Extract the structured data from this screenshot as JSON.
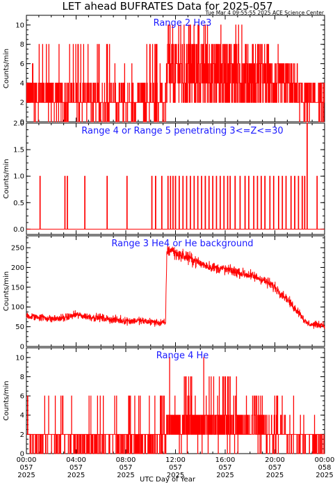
{
  "header": {
    "title": "LET ahead BUFRATES Data for 2025-057",
    "stamp": "Tue Mar  4 09:55:55 2025 ACE Science Center"
  },
  "xaxis": {
    "label": "UTC Day of Year",
    "ticks": [
      {
        "hours": 0,
        "time": "00:00",
        "doy": "057",
        "year": "2025"
      },
      {
        "hours": 4,
        "time": "04:00",
        "doy": "057",
        "year": "2025"
      },
      {
        "hours": 8,
        "time": "08:00",
        "doy": "057",
        "year": "2025"
      },
      {
        "hours": 12,
        "time": "12:00",
        "doy": "057",
        "year": "2025"
      },
      {
        "hours": 16,
        "time": "16:00",
        "doy": "057",
        "year": "2025"
      },
      {
        "hours": 20,
        "time": "20:00",
        "doy": "057",
        "year": "2025"
      },
      {
        "hours": 24,
        "time": "00:00",
        "doy": "058",
        "year": "2025"
      }
    ]
  },
  "colors": {
    "series": "#ff0000",
    "panel_title": "#1a1aff"
  },
  "chart_data": [
    {
      "type": "line",
      "title": "Range 2 He3",
      "ylabel": "Counts/min",
      "ylim": [
        0,
        11
      ],
      "yticks": [
        0,
        2,
        4,
        6,
        8,
        10
      ],
      "xlim": [
        0,
        24
      ],
      "series": [
        {
          "x_hours": [
            0,
            2,
            4,
            6,
            8,
            10,
            11.2,
            11.3,
            12,
            13,
            14,
            15,
            16,
            17,
            18,
            19,
            20,
            21,
            22,
            23,
            24
          ],
          "typical": [
            2.5,
            2.5,
            2,
            2,
            2,
            2,
            2,
            5,
            5,
            5,
            5,
            5,
            5,
            5,
            4.5,
            4.5,
            4,
            3.5,
            3,
            2.5,
            2
          ],
          "max": [
            6,
            8,
            8,
            8,
            6,
            8,
            6,
            10,
            10,
            10,
            11,
            10,
            10,
            10,
            8,
            8,
            8,
            6,
            6,
            3,
            3
          ]
        }
      ]
    },
    {
      "type": "line",
      "title": "Range 4 or Range 5 penetrating 3<=Z<=30",
      "ylabel": "Counts/min",
      "ylim": [
        -0.1,
        2.0
      ],
      "yticks": [
        0.0,
        0.5,
        1.0,
        1.5,
        2.0
      ],
      "xlim": [
        0,
        24
      ],
      "series": [
        {
          "baseline": 0,
          "spike_hours": [
            1.1,
            3.1,
            3.3,
            4.7,
            6.5,
            8.1,
            10.1,
            10.4,
            10.9,
            11.4,
            11.6,
            11.8,
            12.0,
            12.3,
            12.6,
            12.9,
            13.2,
            13.5,
            13.8,
            14.1,
            14.4,
            14.7,
            15.0,
            15.3,
            15.6,
            15.9,
            16.2,
            16.4,
            16.8,
            17.2,
            17.6,
            17.9,
            18.3,
            18.6,
            18.9,
            19.2,
            19.6,
            19.9,
            20.3,
            20.6,
            20.9,
            21.3,
            21.6,
            21.9,
            22.2,
            22.4,
            22.6,
            23.4
          ],
          "spike_values": [
            1,
            1,
            1,
            1,
            1,
            1,
            1,
            1,
            1,
            1,
            1,
            1,
            1,
            1,
            1,
            1,
            1,
            1,
            1,
            1,
            1,
            1,
            1,
            1,
            1,
            1,
            1,
            1,
            1,
            1,
            1,
            1,
            1,
            1,
            1,
            1,
            1,
            1,
            1,
            1,
            1,
            1,
            1,
            1,
            1,
            1,
            2,
            1
          ]
        }
      ]
    },
    {
      "type": "line",
      "title": "Range 3 He4 or He background",
      "ylabel": "Counts/min",
      "ylim": [
        0,
        280
      ],
      "yticks": [
        0,
        50,
        100,
        150,
        200,
        250
      ],
      "xlim": [
        0,
        24
      ],
      "series": [
        {
          "x_hours": [
            0,
            1,
            2,
            3,
            4,
            5,
            6,
            7,
            8,
            9,
            10,
            11,
            11.2,
            11.3,
            11.7,
            12,
            13,
            14,
            15,
            16,
            17,
            18,
            19,
            20,
            21,
            21.5,
            22,
            22.5,
            23,
            24
          ],
          "mean": [
            75,
            75,
            70,
            72,
            80,
            75,
            72,
            68,
            65,
            65,
            62,
            60,
            58,
            240,
            245,
            235,
            225,
            210,
            200,
            195,
            188,
            180,
            170,
            150,
            120,
            100,
            85,
            60,
            55,
            55
          ],
          "noise": [
            9,
            9,
            9,
            9,
            9,
            9,
            9,
            9,
            9,
            9,
            9,
            9,
            9,
            14,
            14,
            14,
            14,
            12,
            12,
            12,
            12,
            12,
            12,
            12,
            10,
            10,
            10,
            8,
            8,
            8
          ]
        }
      ]
    },
    {
      "type": "line",
      "title": "Range 4 He",
      "ylabel": "Counts/min",
      "ylim": [
        0,
        11
      ],
      "yticks": [
        0,
        2,
        4,
        6,
        8,
        10
      ],
      "xlim": [
        0,
        24
      ],
      "series": [
        {
          "x_hours": [
            0,
            2,
            4,
            6,
            8,
            10,
            11.2,
            11.3,
            12,
            13,
            14,
            15,
            16,
            17,
            18,
            19,
            20,
            21,
            22,
            23,
            24
          ],
          "typical": [
            1.5,
            1.5,
            1.5,
            1.5,
            1.5,
            1.5,
            1.5,
            3,
            3,
            3,
            3,
            3,
            3,
            3,
            2.5,
            2.5,
            2,
            2,
            1.5,
            1.5,
            1
          ],
          "max": [
            6,
            6,
            6,
            6,
            6,
            6,
            6,
            10,
            10,
            8,
            11,
            8,
            8,
            8,
            6,
            6,
            6,
            6,
            4,
            4,
            3
          ]
        }
      ]
    }
  ]
}
